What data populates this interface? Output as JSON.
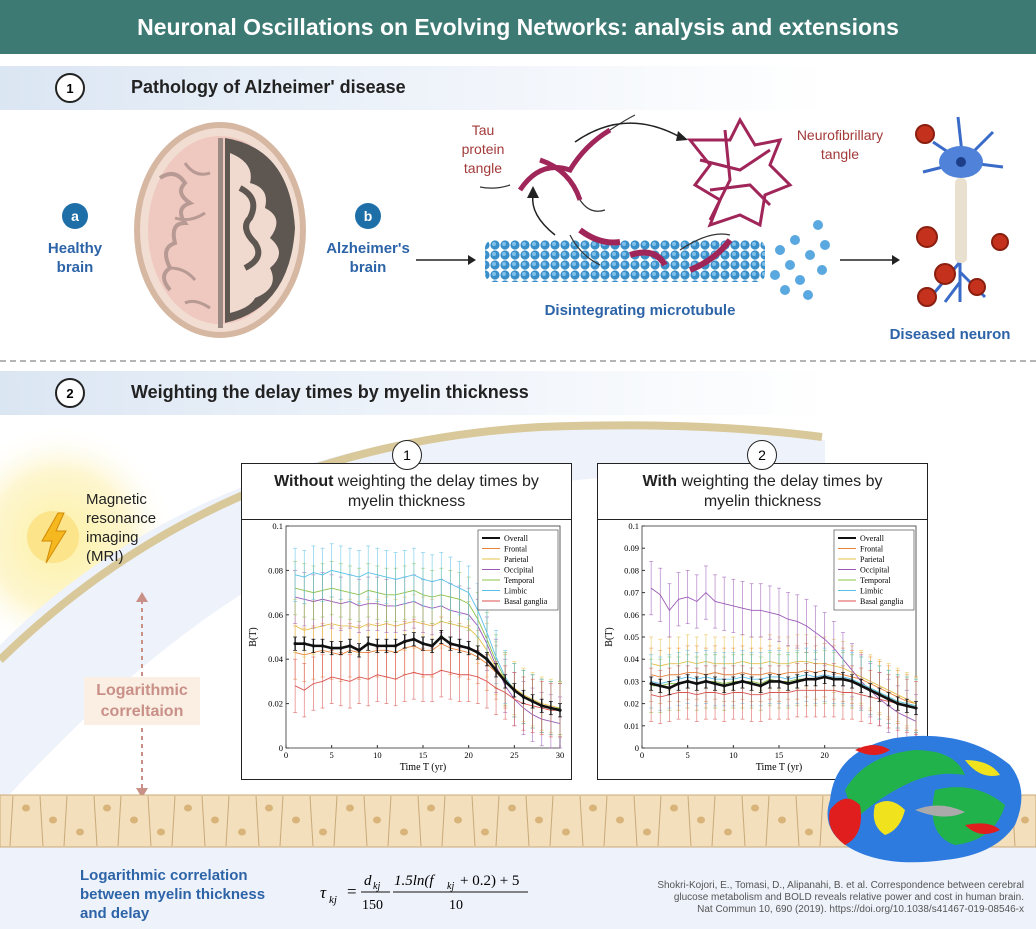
{
  "title": "Neuronal Oscillations on Evolving Networks: analysis and extensions",
  "section1": {
    "number": "1",
    "title": "Pathology of Alzheimer' disease",
    "healthy": {
      "badge": "a",
      "label_line1": "Healthy",
      "label_line2": "brain"
    },
    "alzheimers": {
      "badge": "b",
      "label_line1": "Alzheimer's",
      "label_line2": "brain"
    },
    "tau": {
      "line1": "Tau",
      "line2": "protein",
      "line3": "tangle"
    },
    "nft": {
      "line1": "Neurofibrillary",
      "line2": "tangle"
    },
    "microtubule": "Disintegrating microtubule",
    "neuron": "Diseased neuron"
  },
  "section2": {
    "number": "2",
    "title": "Weighting the delay times by myelin thickness",
    "mri": {
      "line1": "Magnetic",
      "line2": "resonance",
      "line3": "imaging",
      "line4": "(MRI)"
    },
    "log_corr": {
      "line1": "Logarithmic",
      "line2": "correltaion"
    },
    "bottom_label": {
      "line1": "Logarithmic correlation",
      "line2": "between myelin thickness",
      "line3": "and delay"
    },
    "formula": {
      "lhs": "τ",
      "lhs_sub": "kj",
      "eq": "=",
      "d": "d",
      "d_sub": "kj",
      "d_den": "150",
      "num": "1.5ln(f",
      "num_sub": "kj",
      "num_end": "+ 0.2) + 5",
      "den": "10"
    },
    "citation": {
      "line1": "Shokri-Kojori, E., Tomasi, D., Alipanahi, B. et al. Correspondence between cerebral",
      "line2": "glucose metabolism and BOLD reveals relative power and cost in human brain.",
      "line3": "Nat Commun 10, 690 (2019). https://doi.org/10.1038/s41467-019-08546-x"
    }
  },
  "panels": [
    {
      "number": "1",
      "bold": "Without",
      "rest": " weighting the delay times by",
      "line2": "myelin thickness"
    },
    {
      "number": "2",
      "bold": "With",
      "rest": " weighting the delay times by",
      "line2": "myelin thickness"
    }
  ],
  "colors": {
    "title_bg": "#3d7a74",
    "accent_blue": "#2d64a8",
    "tangle": "#a0265a",
    "microtubule": "#3a8fc8"
  },
  "chart_data": [
    {
      "type": "line",
      "xlabel": "Time T (yr)",
      "ylabel": "B(T)",
      "xlim": [
        0,
        30
      ],
      "ylim": [
        0,
        0.1
      ],
      "xticks": [
        "0",
        "5",
        "10",
        "15",
        "20",
        "25",
        "30"
      ],
      "yticks": [
        "0",
        "0.02",
        "0.04",
        "0.06",
        "0.08",
        "0.1"
      ],
      "legend_position": "top-right",
      "x": [
        1,
        2,
        3,
        4,
        5,
        6,
        7,
        8,
        9,
        10,
        11,
        12,
        13,
        14,
        15,
        16,
        17,
        18,
        19,
        20,
        21,
        22,
        23,
        24,
        25,
        26,
        27,
        28,
        29,
        30
      ],
      "series": [
        {
          "name": "Overall",
          "color": "#111111",
          "values": [
            0.047,
            0.047,
            0.046,
            0.046,
            0.045,
            0.045,
            0.046,
            0.044,
            0.047,
            0.046,
            0.046,
            0.046,
            0.048,
            0.049,
            0.047,
            0.046,
            0.05,
            0.047,
            0.046,
            0.045,
            0.043,
            0.04,
            0.035,
            0.03,
            0.026,
            0.023,
            0.021,
            0.019,
            0.018,
            0.017
          ]
        },
        {
          "name": "Frontal",
          "color": "#e8833a",
          "values": [
            0.043,
            0.042,
            0.043,
            0.044,
            0.043,
            0.042,
            0.044,
            0.043,
            0.043,
            0.044,
            0.044,
            0.043,
            0.045,
            0.046,
            0.044,
            0.044,
            0.047,
            0.045,
            0.044,
            0.043,
            0.041,
            0.038,
            0.034,
            0.03,
            0.026,
            0.023,
            0.021,
            0.019,
            0.018,
            0.017
          ]
        },
        {
          "name": "Parietal",
          "color": "#e6c04a",
          "values": [
            0.055,
            0.053,
            0.054,
            0.055,
            0.056,
            0.055,
            0.055,
            0.054,
            0.056,
            0.055,
            0.056,
            0.055,
            0.056,
            0.057,
            0.056,
            0.055,
            0.057,
            0.056,
            0.055,
            0.054,
            0.05,
            0.044,
            0.036,
            0.031,
            0.027,
            0.024,
            0.022,
            0.02,
            0.019,
            0.018
          ]
        },
        {
          "name": "Occipital",
          "color": "#9b59b6",
          "values": [
            0.068,
            0.067,
            0.066,
            0.067,
            0.066,
            0.065,
            0.066,
            0.064,
            0.065,
            0.065,
            0.064,
            0.064,
            0.065,
            0.066,
            0.064,
            0.063,
            0.064,
            0.062,
            0.061,
            0.06,
            0.055,
            0.047,
            0.037,
            0.028,
            0.022,
            0.018,
            0.015,
            0.013,
            0.012,
            0.011
          ]
        },
        {
          "name": "Temporal",
          "color": "#8bc34a",
          "values": [
            0.072,
            0.071,
            0.07,
            0.071,
            0.072,
            0.071,
            0.07,
            0.069,
            0.071,
            0.07,
            0.069,
            0.069,
            0.07,
            0.071,
            0.069,
            0.068,
            0.069,
            0.068,
            0.067,
            0.065,
            0.058,
            0.049,
            0.039,
            0.031,
            0.026,
            0.023,
            0.021,
            0.019,
            0.018,
            0.018
          ]
        },
        {
          "name": "Limbic",
          "color": "#5bc0e8",
          "values": [
            0.078,
            0.077,
            0.079,
            0.078,
            0.08,
            0.079,
            0.078,
            0.077,
            0.079,
            0.078,
            0.077,
            0.076,
            0.077,
            0.078,
            0.076,
            0.075,
            0.076,
            0.074,
            0.072,
            0.07,
            0.062,
            0.052,
            0.041,
            0.032,
            0.026,
            0.023,
            0.021,
            0.019,
            0.018,
            0.017
          ]
        },
        {
          "name": "Basal ganglia",
          "color": "#d9534f",
          "values": [
            0.028,
            0.026,
            0.029,
            0.03,
            0.032,
            0.031,
            0.03,
            0.032,
            0.031,
            0.033,
            0.032,
            0.031,
            0.033,
            0.034,
            0.033,
            0.033,
            0.035,
            0.034,
            0.033,
            0.033,
            0.032,
            0.03,
            0.027,
            0.025,
            0.022,
            0.02,
            0.019,
            0.018,
            0.017,
            0.017
          ]
        }
      ]
    },
    {
      "type": "line",
      "xlabel": "Time T (yr)",
      "ylabel": "B(T)",
      "xlim": [
        0,
        30
      ],
      "ylim": [
        0,
        0.1
      ],
      "xticks": [
        "0",
        "5",
        "10",
        "15",
        "20",
        "25",
        "30"
      ],
      "yticks": [
        "0",
        "0.01",
        "0.02",
        "0.03",
        "0.04",
        "0.05",
        "0.06",
        "0.07",
        "0.08",
        "0.09",
        "0.1"
      ],
      "legend_position": "top-right",
      "x": [
        1,
        2,
        3,
        4,
        5,
        6,
        7,
        8,
        9,
        10,
        11,
        12,
        13,
        14,
        15,
        16,
        17,
        18,
        19,
        20,
        21,
        22,
        23,
        24,
        25,
        26,
        27,
        28,
        29,
        30
      ],
      "series": [
        {
          "name": "Overall",
          "color": "#111111",
          "values": [
            0.029,
            0.028,
            0.027,
            0.029,
            0.03,
            0.029,
            0.03,
            0.029,
            0.028,
            0.029,
            0.03,
            0.029,
            0.028,
            0.03,
            0.03,
            0.029,
            0.03,
            0.031,
            0.031,
            0.032,
            0.031,
            0.031,
            0.03,
            0.028,
            0.026,
            0.024,
            0.022,
            0.02,
            0.019,
            0.018
          ]
        },
        {
          "name": "Frontal",
          "color": "#e8833a",
          "values": [
            0.033,
            0.032,
            0.033,
            0.033,
            0.034,
            0.034,
            0.033,
            0.034,
            0.033,
            0.033,
            0.034,
            0.033,
            0.033,
            0.034,
            0.033,
            0.034,
            0.034,
            0.035,
            0.034,
            0.035,
            0.034,
            0.033,
            0.032,
            0.031,
            0.029,
            0.027,
            0.025,
            0.023,
            0.021,
            0.02
          ]
        },
        {
          "name": "Parietal",
          "color": "#e6c04a",
          "values": [
            0.038,
            0.037,
            0.038,
            0.038,
            0.039,
            0.038,
            0.039,
            0.038,
            0.038,
            0.038,
            0.039,
            0.038,
            0.038,
            0.039,
            0.038,
            0.038,
            0.039,
            0.039,
            0.038,
            0.038,
            0.037,
            0.036,
            0.034,
            0.032,
            0.03,
            0.028,
            0.026,
            0.024,
            0.022,
            0.02
          ]
        },
        {
          "name": "Occipital",
          "color": "#9b59b6",
          "values": [
            0.072,
            0.069,
            0.062,
            0.067,
            0.068,
            0.066,
            0.07,
            0.066,
            0.065,
            0.064,
            0.063,
            0.062,
            0.062,
            0.061,
            0.06,
            0.058,
            0.057,
            0.055,
            0.052,
            0.049,
            0.045,
            0.04,
            0.035,
            0.03,
            0.026,
            0.022,
            0.019,
            0.016,
            0.014,
            0.012
          ]
        },
        {
          "name": "Temporal",
          "color": "#8bc34a",
          "values": [
            0.028,
            0.028,
            0.029,
            0.029,
            0.03,
            0.029,
            0.03,
            0.03,
            0.029,
            0.03,
            0.03,
            0.03,
            0.029,
            0.031,
            0.03,
            0.03,
            0.031,
            0.031,
            0.031,
            0.032,
            0.031,
            0.031,
            0.03,
            0.029,
            0.027,
            0.025,
            0.023,
            0.021,
            0.02,
            0.019
          ]
        },
        {
          "name": "Limbic",
          "color": "#5bc0e8",
          "values": [
            0.03,
            0.029,
            0.03,
            0.031,
            0.032,
            0.031,
            0.032,
            0.031,
            0.031,
            0.031,
            0.032,
            0.031,
            0.031,
            0.032,
            0.032,
            0.031,
            0.032,
            0.033,
            0.032,
            0.033,
            0.032,
            0.032,
            0.031,
            0.029,
            0.027,
            0.025,
            0.023,
            0.021,
            0.02,
            0.019
          ]
        },
        {
          "name": "Basal ganglia",
          "color": "#d9534f",
          "values": [
            0.024,
            0.023,
            0.024,
            0.025,
            0.025,
            0.024,
            0.025,
            0.025,
            0.024,
            0.025,
            0.025,
            0.024,
            0.024,
            0.025,
            0.025,
            0.025,
            0.026,
            0.026,
            0.026,
            0.026,
            0.026,
            0.025,
            0.025,
            0.024,
            0.023,
            0.022,
            0.021,
            0.02,
            0.019,
            0.018
          ]
        }
      ]
    }
  ]
}
